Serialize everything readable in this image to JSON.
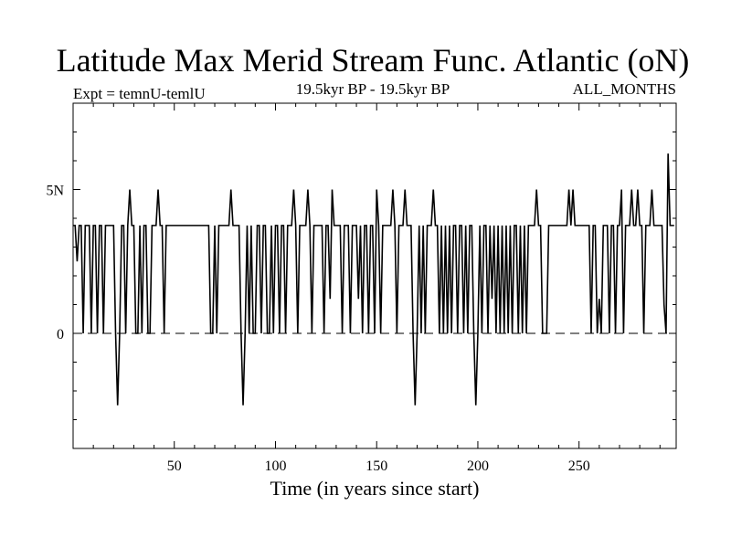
{
  "chart_data": {
    "type": "line",
    "title": "Latitude Max Merid Stream Func. Atlantic (oN)",
    "header_left": "Expt = temnU-temlU",
    "header_center": "19.5kyr BP - 19.5kyr BP",
    "header_right": "ALL_MONTHS",
    "xlabel": "Time (in years since start)",
    "ylabel": "",
    "xlim": [
      0,
      298
    ],
    "ylim": [
      -4,
      8
    ],
    "x_ticks": [
      50,
      100,
      150,
      200,
      250
    ],
    "x_tick_labels": [
      "50",
      "100",
      "150",
      "200",
      "250"
    ],
    "y_ticks": [
      0,
      5
    ],
    "y_tick_labels": [
      "0",
      "5N"
    ],
    "reference_line": {
      "y": 0,
      "style": "dashed"
    },
    "grid": false,
    "legend": false,
    "series": [
      {
        "values": [
          [
            0,
            3.75
          ],
          [
            1,
            3.75
          ],
          [
            2,
            2.5
          ],
          [
            3,
            3.75
          ],
          [
            4,
            3.75
          ],
          [
            5,
            0
          ],
          [
            6,
            3.75
          ],
          [
            7,
            3.75
          ],
          [
            8,
            3.75
          ],
          [
            9,
            0
          ],
          [
            10,
            3.75
          ],
          [
            11,
            3.75
          ],
          [
            12,
            0
          ],
          [
            13,
            3.75
          ],
          [
            14,
            3.75
          ],
          [
            15,
            0
          ],
          [
            16,
            3.75
          ],
          [
            17,
            3.75
          ],
          [
            18,
            3.75
          ],
          [
            19,
            3.75
          ],
          [
            20,
            3.75
          ],
          [
            21,
            0
          ],
          [
            22,
            -2.5
          ],
          [
            23,
            0
          ],
          [
            24,
            3.75
          ],
          [
            25,
            3.75
          ],
          [
            26,
            0
          ],
          [
            27,
            3.75
          ],
          [
            28,
            5
          ],
          [
            29,
            3.75
          ],
          [
            30,
            3.75
          ],
          [
            31,
            0
          ],
          [
            32,
            0
          ],
          [
            33,
            3.75
          ],
          [
            34,
            0
          ],
          [
            35,
            3.75
          ],
          [
            36,
            3.75
          ],
          [
            37,
            0
          ],
          [
            38,
            0
          ],
          [
            39,
            3.75
          ],
          [
            40,
            3.75
          ],
          [
            41,
            3.75
          ],
          [
            42,
            5
          ],
          [
            43,
            3.75
          ],
          [
            44,
            3.75
          ],
          [
            45,
            0
          ],
          [
            46,
            3.75
          ],
          [
            47,
            3.75
          ],
          [
            48,
            3.75
          ],
          [
            49,
            3.75
          ],
          [
            50,
            3.75
          ],
          [
            51,
            3.75
          ],
          [
            52,
            3.75
          ],
          [
            53,
            3.75
          ],
          [
            54,
            3.75
          ],
          [
            55,
            3.75
          ],
          [
            56,
            3.75
          ],
          [
            57,
            3.75
          ],
          [
            58,
            3.75
          ],
          [
            59,
            3.75
          ],
          [
            60,
            3.75
          ],
          [
            61,
            3.75
          ],
          [
            62,
            3.75
          ],
          [
            63,
            3.75
          ],
          [
            64,
            3.75
          ],
          [
            65,
            3.75
          ],
          [
            66,
            3.75
          ],
          [
            67,
            3.75
          ],
          [
            68,
            0
          ],
          [
            69,
            0
          ],
          [
            70,
            3.75
          ],
          [
            71,
            0
          ],
          [
            72,
            3.75
          ],
          [
            73,
            3.75
          ],
          [
            74,
            3.75
          ],
          [
            75,
            3.75
          ],
          [
            76,
            3.75
          ],
          [
            77,
            3.75
          ],
          [
            78,
            5
          ],
          [
            79,
            3.75
          ],
          [
            80,
            3.75
          ],
          [
            81,
            3.75
          ],
          [
            82,
            3.75
          ],
          [
            83,
            0
          ],
          [
            84,
            -2.5
          ],
          [
            85,
            0
          ],
          [
            86,
            3.75
          ],
          [
            87,
            0
          ],
          [
            88,
            3.75
          ],
          [
            89,
            0
          ],
          [
            90,
            0
          ],
          [
            91,
            3.75
          ],
          [
            92,
            3.75
          ],
          [
            93,
            0
          ],
          [
            94,
            3.75
          ],
          [
            95,
            3.75
          ],
          [
            96,
            0
          ],
          [
            97,
            0
          ],
          [
            98,
            3.75
          ],
          [
            99,
            0
          ],
          [
            100,
            3.75
          ],
          [
            101,
            3.75
          ],
          [
            102,
            0
          ],
          [
            103,
            3.75
          ],
          [
            104,
            3.75
          ],
          [
            105,
            0
          ],
          [
            106,
            3.75
          ],
          [
            107,
            3.75
          ],
          [
            108,
            3.75
          ],
          [
            109,
            5
          ],
          [
            110,
            3.75
          ],
          [
            111,
            0
          ],
          [
            112,
            3.75
          ],
          [
            113,
            3.75
          ],
          [
            114,
            3.75
          ],
          [
            115,
            3.75
          ],
          [
            116,
            5
          ],
          [
            117,
            3.75
          ],
          [
            118,
            0
          ],
          [
            119,
            3.75
          ],
          [
            120,
            3.75
          ],
          [
            121,
            3.75
          ],
          [
            122,
            3.75
          ],
          [
            123,
            3.75
          ],
          [
            124,
            0
          ],
          [
            125,
            3.75
          ],
          [
            126,
            3.75
          ],
          [
            127,
            1.2
          ],
          [
            128,
            5
          ],
          [
            129,
            3.75
          ],
          [
            130,
            3.75
          ],
          [
            131,
            3.75
          ],
          [
            132,
            3.75
          ],
          [
            133,
            0
          ],
          [
            134,
            3.75
          ],
          [
            135,
            3.75
          ],
          [
            136,
            3.75
          ],
          [
            137,
            0
          ],
          [
            138,
            3.75
          ],
          [
            139,
            3.75
          ],
          [
            140,
            3.75
          ],
          [
            141,
            1.2
          ],
          [
            142,
            3.75
          ],
          [
            143,
            0
          ],
          [
            144,
            3.75
          ],
          [
            145,
            3.75
          ],
          [
            146,
            0
          ],
          [
            147,
            3.75
          ],
          [
            148,
            3.75
          ],
          [
            149,
            0
          ],
          [
            150,
            5
          ],
          [
            151,
            3.75
          ],
          [
            152,
            0
          ],
          [
            153,
            3.75
          ],
          [
            154,
            3.75
          ],
          [
            155,
            3.75
          ],
          [
            156,
            3.75
          ],
          [
            157,
            3.75
          ],
          [
            158,
            5
          ],
          [
            159,
            3.75
          ],
          [
            160,
            0
          ],
          [
            161,
            3.75
          ],
          [
            162,
            3.75
          ],
          [
            163,
            3.75
          ],
          [
            164,
            5
          ],
          [
            165,
            3.75
          ],
          [
            166,
            3.75
          ],
          [
            167,
            3.75
          ],
          [
            168,
            0
          ],
          [
            169,
            -2.5
          ],
          [
            170,
            0
          ],
          [
            171,
            3.75
          ],
          [
            172,
            0
          ],
          [
            173,
            3.75
          ],
          [
            174,
            0
          ],
          [
            175,
            3.75
          ],
          [
            176,
            3.75
          ],
          [
            177,
            3.75
          ],
          [
            178,
            5
          ],
          [
            179,
            3.75
          ],
          [
            180,
            3.75
          ],
          [
            181,
            0
          ],
          [
            182,
            3.75
          ],
          [
            183,
            0
          ],
          [
            184,
            3.75
          ],
          [
            185,
            0
          ],
          [
            186,
            3.75
          ],
          [
            187,
            0
          ],
          [
            188,
            3.75
          ],
          [
            189,
            3.75
          ],
          [
            190,
            0
          ],
          [
            191,
            3.75
          ],
          [
            192,
            3.75
          ],
          [
            193,
            0
          ],
          [
            194,
            3.75
          ],
          [
            195,
            0
          ],
          [
            196,
            3.75
          ],
          [
            197,
            3.75
          ],
          [
            198,
            0
          ],
          [
            199,
            -2.5
          ],
          [
            200,
            0
          ],
          [
            201,
            3.75
          ],
          [
            202,
            0
          ],
          [
            203,
            3.75
          ],
          [
            204,
            3.75
          ],
          [
            205,
            0
          ],
          [
            206,
            3.75
          ],
          [
            207,
            1.2
          ],
          [
            208,
            3.75
          ],
          [
            209,
            0
          ],
          [
            210,
            3.75
          ],
          [
            211,
            0
          ],
          [
            212,
            3.75
          ],
          [
            213,
            0
          ],
          [
            214,
            3.75
          ],
          [
            215,
            0
          ],
          [
            216,
            3.75
          ],
          [
            217,
            0
          ],
          [
            218,
            3.75
          ],
          [
            219,
            3.75
          ],
          [
            220,
            0
          ],
          [
            221,
            3.75
          ],
          [
            222,
            0
          ],
          [
            223,
            3.75
          ],
          [
            224,
            0
          ],
          [
            225,
            3.75
          ],
          [
            226,
            3.75
          ],
          [
            227,
            3.75
          ],
          [
            228,
            3.75
          ],
          [
            229,
            5
          ],
          [
            230,
            3.75
          ],
          [
            231,
            3.75
          ],
          [
            232,
            0
          ],
          [
            233,
            0
          ],
          [
            234,
            0
          ],
          [
            235,
            3.75
          ],
          [
            236,
            3.75
          ],
          [
            237,
            3.75
          ],
          [
            238,
            3.75
          ],
          [
            239,
            3.75
          ],
          [
            240,
            3.75
          ],
          [
            241,
            3.75
          ],
          [
            242,
            3.75
          ],
          [
            243,
            3.75
          ],
          [
            244,
            3.75
          ],
          [
            245,
            5
          ],
          [
            246,
            3.75
          ],
          [
            247,
            5
          ],
          [
            248,
            3.75
          ],
          [
            249,
            3.75
          ],
          [
            250,
            3.75
          ],
          [
            251,
            3.75
          ],
          [
            252,
            3.75
          ],
          [
            253,
            3.75
          ],
          [
            254,
            3.75
          ],
          [
            255,
            3.75
          ],
          [
            256,
            0
          ],
          [
            257,
            3.75
          ],
          [
            258,
            3.75
          ],
          [
            259,
            0
          ],
          [
            260,
            1.2
          ],
          [
            261,
            0
          ],
          [
            262,
            3.75
          ],
          [
            263,
            3.75
          ],
          [
            264,
            3.75
          ],
          [
            265,
            0
          ],
          [
            266,
            3.75
          ],
          [
            267,
            3.75
          ],
          [
            268,
            0
          ],
          [
            269,
            3.75
          ],
          [
            270,
            3.75
          ],
          [
            271,
            5
          ],
          [
            272,
            0
          ],
          [
            273,
            3.75
          ],
          [
            274,
            3.75
          ],
          [
            275,
            3.75
          ],
          [
            276,
            5
          ],
          [
            277,
            3.75
          ],
          [
            278,
            3.75
          ],
          [
            279,
            5
          ],
          [
            280,
            3.75
          ],
          [
            281,
            3.75
          ],
          [
            282,
            0
          ],
          [
            283,
            3.75
          ],
          [
            284,
            3.75
          ],
          [
            285,
            3.75
          ],
          [
            286,
            5
          ],
          [
            287,
            3.75
          ],
          [
            288,
            3.75
          ],
          [
            289,
            3.75
          ],
          [
            290,
            3.75
          ],
          [
            291,
            3.75
          ],
          [
            292,
            1
          ],
          [
            293,
            0
          ],
          [
            294,
            6.25
          ],
          [
            295,
            3.75
          ],
          [
            296,
            3.75
          ],
          [
            297,
            3.75
          ]
        ]
      }
    ]
  }
}
